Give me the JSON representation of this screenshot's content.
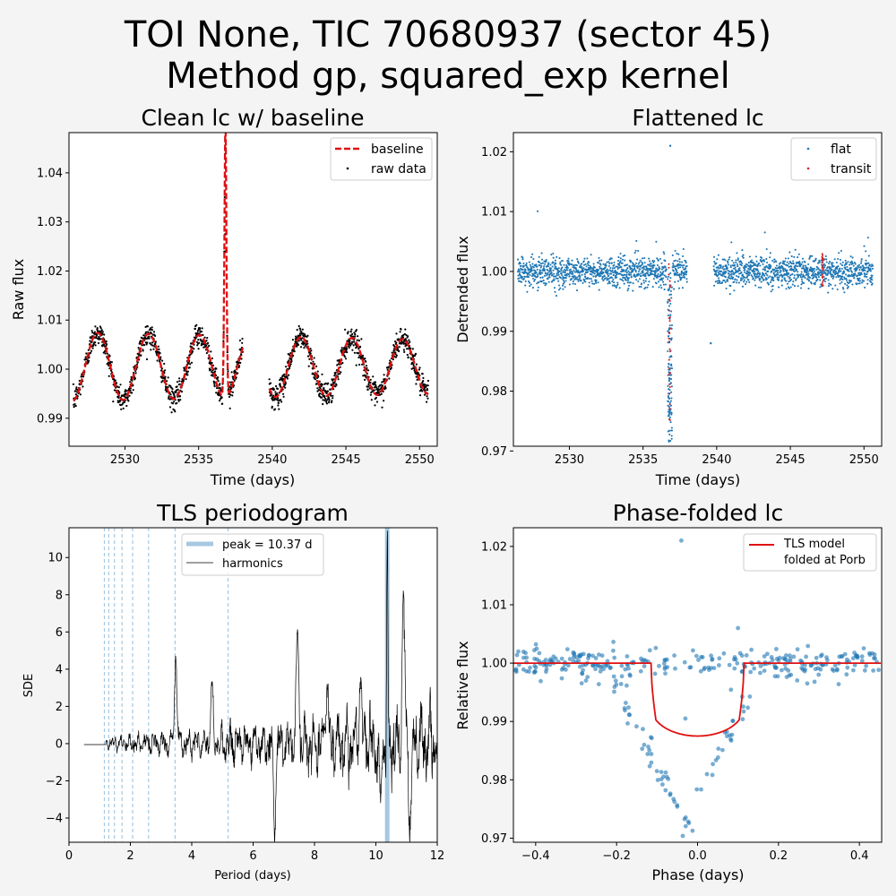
{
  "figure": {
    "title_line1": "TOI None, TIC 70680937 (sector 45)",
    "title_line2": "Method gp, squared_exp kernel"
  },
  "colors": {
    "background": "#f4f4f4",
    "raw": "#000000",
    "baseline": "#e01010",
    "flat": "#1f77b4",
    "transit": "#d62728",
    "peak_band": "#a6c8e0",
    "model": "#e01010"
  },
  "chart_data": [
    {
      "type": "scatter",
      "title": "Clean lc w/ baseline",
      "xlabel": "Time (days)",
      "ylabel": "Raw flux",
      "xlim": [
        2526.2,
        2551.2
      ],
      "ylim": [
        0.9843,
        1.0482
      ],
      "xticks": [
        2530,
        2535,
        2540,
        2545,
        2550
      ],
      "xticklabels": [
        "2530",
        "2535",
        "2540",
        "2545",
        "2550"
      ],
      "yticks": [
        0.99,
        1.0,
        1.01,
        1.02,
        1.03,
        1.04
      ],
      "yticklabels": [
        "0.99",
        "1.00",
        "1.01",
        "1.02",
        "1.03",
        "1.04"
      ],
      "legend": [
        "baseline",
        "raw data"
      ],
      "legend_loc": "upper right",
      "series": [
        {
          "name": "raw data",
          "kind": "points",
          "segments": [
            [
              2526.5,
              2538.0
            ],
            [
              2539.8,
              2550.6
            ]
          ]
        },
        {
          "name": "baseline",
          "kind": "dashed line"
        }
      ],
      "baseline_model": {
        "period": 3.45,
        "amp_start": 0.007,
        "amp_end": 0.0055,
        "phase_ref": 2531.6,
        "offset": 1.0005
      },
      "outliers": [
        [
          2536.82,
          1.045
        ],
        [
          2536.82,
          1.0275
        ],
        [
          2536.85,
          1.024
        ]
      ],
      "flare": {
        "t": 2536.82,
        "peak": 1.0245,
        "width": 0.12
      }
    },
    {
      "type": "scatter",
      "title": "Flattened lc",
      "xlabel": "Time (days)",
      "ylabel": "Detrended flux",
      "xlim": [
        2526.2,
        2551.2
      ],
      "ylim": [
        0.9708,
        1.0232
      ],
      "xticks": [
        2530,
        2535,
        2540,
        2545,
        2550
      ],
      "xticklabels": [
        "2530",
        "2535",
        "2540",
        "2545",
        "2550"
      ],
      "yticks": [
        0.97,
        0.98,
        0.99,
        1.0,
        1.01,
        1.02
      ],
      "yticklabels": [
        "0.97",
        "0.98",
        "0.99",
        "1.00",
        "1.01",
        "1.02"
      ],
      "legend": [
        "flat",
        "transit"
      ],
      "legend_loc": "upper right",
      "series": [
        {
          "name": "flat",
          "kind": "points",
          "center": 1.0,
          "scatter_sd": 0.0013
        },
        {
          "name": "transit",
          "kind": "points",
          "times": [
            2536.8,
            2547.2
          ]
        }
      ],
      "dip": {
        "t": 2536.82,
        "min": 0.9715
      },
      "outliers": [
        [
          2536.85,
          1.021
        ],
        [
          2539.6,
          0.988
        ]
      ]
    },
    {
      "type": "line",
      "title": "TLS periodogram",
      "xlabel": "Period (days)",
      "ylabel": "SDE",
      "xlim": [
        0,
        12
      ],
      "ylim": [
        -5.3,
        11.6
      ],
      "xticks": [
        0,
        2,
        4,
        6,
        8,
        10,
        12
      ],
      "xticklabels": [
        "0",
        "2",
        "4",
        "6",
        "8",
        "10",
        "12"
      ],
      "yticks": [
        -4,
        -2,
        0,
        2,
        4,
        6,
        8,
        10
      ],
      "yticklabels": [
        "−4",
        "−2",
        "0",
        "2",
        "4",
        "6",
        "8",
        "10"
      ],
      "legend": [
        "peak = 10.37 d",
        "harmonics"
      ],
      "legend_loc": "upper right",
      "peak_period": 10.37,
      "peak_sde": 10.9,
      "harmonic_periods": [
        1.153,
        1.296,
        1.481,
        1.728,
        2.074,
        2.593,
        3.457,
        5.185
      ],
      "features": [
        {
          "x": 3.48,
          "y": 4.7
        },
        {
          "x": 4.65,
          "y": 3.2
        },
        {
          "x": 6.7,
          "y": -4.4
        },
        {
          "x": 7.45,
          "y": 6.2
        },
        {
          "x": 8.4,
          "y": 3.3
        },
        {
          "x": 9.5,
          "y": 3.7
        },
        {
          "x": 10.15,
          "y": -3.0
        },
        {
          "x": 10.9,
          "y": 8.2
        },
        {
          "x": 11.12,
          "y": -4.5
        }
      ]
    },
    {
      "type": "scatter",
      "title": "Phase-folded lc",
      "xlabel": "Phase (days)",
      "ylabel": "Relative flux",
      "xlim": [
        -0.455,
        0.455
      ],
      "ylim": [
        0.9693,
        1.0232
      ],
      "xticks": [
        -0.4,
        -0.2,
        0.0,
        0.2,
        0.4
      ],
      "xticklabels": [
        "−0.4",
        "−0.2",
        "0.0",
        "0.2",
        "0.4"
      ],
      "yticks": [
        0.97,
        0.98,
        0.99,
        1.0,
        1.01,
        1.02
      ],
      "yticklabels": [
        "0.97",
        "0.98",
        "0.99",
        "1.00",
        "1.01",
        "1.02"
      ],
      "legend": [
        "TLS model\nfolded at Porb"
      ],
      "legend_lines": [
        "TLS model",
        "folded at Porb"
      ],
      "legend_loc": "upper right",
      "model": {
        "half_duration": 0.115,
        "depth_center": 0.9875,
        "ingress": 0.012
      },
      "points_v_shape": {
        "half_width": 0.2,
        "min": 0.9725,
        "center": -0.03
      },
      "outliers": [
        [
          -0.04,
          1.021
        ],
        [
          0.1,
          1.006
        ],
        [
          -0.03,
          0.9905
        ]
      ]
    }
  ]
}
